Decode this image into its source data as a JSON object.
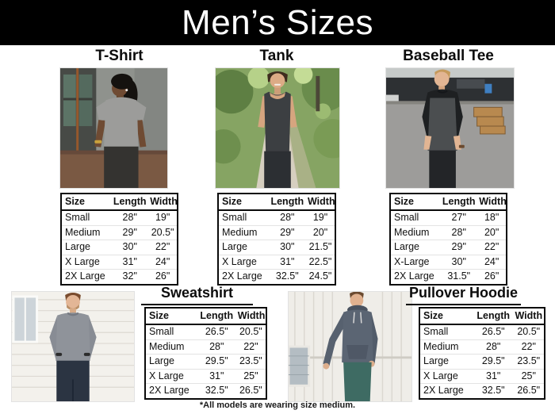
{
  "header": {
    "title": "Men’s Sizes"
  },
  "sections": [
    {
      "id": "tshirt",
      "title": "T-Shirt",
      "table": {
        "headers": [
          "Size",
          "Length",
          "Width"
        ],
        "rows": [
          [
            "Small",
            "28\"",
            "19\""
          ],
          [
            "Medium",
            "29\"",
            "20.5\""
          ],
          [
            "Large",
            "30\"",
            "22\""
          ],
          [
            "X Large",
            "31\"",
            "24\""
          ],
          [
            "2X Large",
            "32\"",
            "26\""
          ]
        ]
      }
    },
    {
      "id": "tank",
      "title": "Tank",
      "table": {
        "headers": [
          "Size",
          "Length",
          "Width"
        ],
        "rows": [
          [
            "Small",
            "28\"",
            "19\""
          ],
          [
            "Medium",
            "29\"",
            "20\""
          ],
          [
            "Large",
            "30\"",
            "21.5\""
          ],
          [
            "X Large",
            "31\"",
            "22.5\""
          ],
          [
            "2X Large",
            "32.5\"",
            "24.5\""
          ]
        ]
      }
    },
    {
      "id": "baseball-tee",
      "title": "Baseball Tee",
      "table": {
        "headers": [
          "Size",
          "Length",
          "Width"
        ],
        "rows": [
          [
            "Small",
            "27\"",
            "18\""
          ],
          [
            "Medium",
            "28\"",
            "20\""
          ],
          [
            "Large",
            "29\"",
            "22\""
          ],
          [
            "X-Large",
            "30\"",
            "24\""
          ],
          [
            "2X Large",
            "31.5\"",
            "26\""
          ]
        ]
      }
    },
    {
      "id": "sweatshirt",
      "title": "Sweatshirt",
      "table": {
        "headers": [
          "Size",
          "Length",
          "Width"
        ],
        "rows": [
          [
            "Small",
            "26.5\"",
            "20.5\""
          ],
          [
            "Medium",
            "28\"",
            "22\""
          ],
          [
            "Large",
            "29.5\"",
            "23.5\""
          ],
          [
            "X Large",
            "31\"",
            "25\""
          ],
          [
            "2X Large",
            "32.5\"",
            "26.5\""
          ]
        ]
      }
    },
    {
      "id": "pullover-hoodie",
      "title": "Pullover Hoodie",
      "table": {
        "headers": [
          "Size",
          "Length",
          "Width"
        ],
        "rows": [
          [
            "Small",
            "26.5\"",
            "20.5\""
          ],
          [
            "Medium",
            "28\"",
            "22\""
          ],
          [
            "Large",
            "29.5\"",
            "23.5\""
          ],
          [
            "X Large",
            "31\"",
            "25\""
          ],
          [
            "2X Large",
            "32.5\"",
            "26.5\""
          ]
        ]
      }
    }
  ],
  "footnote": "*All models are wearing size medium.",
  "colors": {
    "header_bg": "#000000",
    "header_text": "#ffffff",
    "tshirt": "#9c9c9a",
    "tank": "#3c3f42",
    "baseball_body": "#4b4e50",
    "baseball_sleeves": "#1e2022",
    "sweatshirt": "#8f939a",
    "hoodie": "#5b6573"
  }
}
